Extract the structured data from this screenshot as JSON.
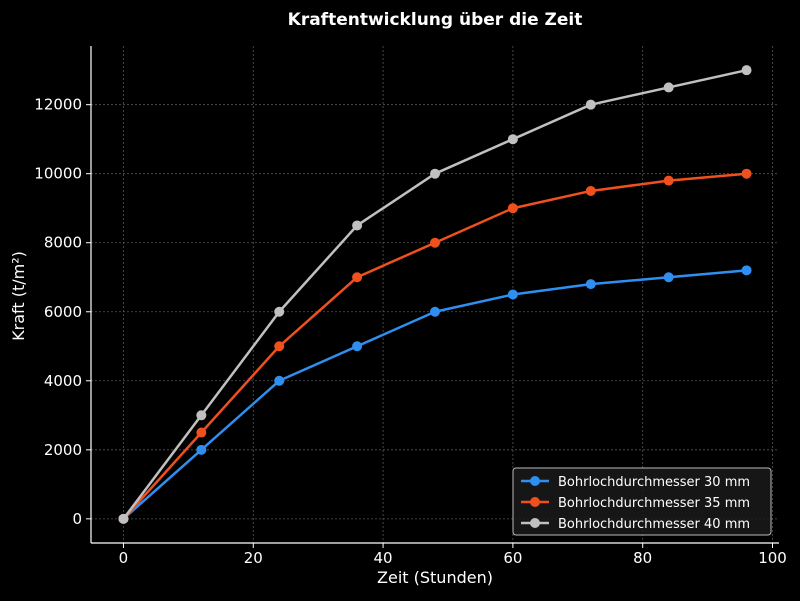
{
  "chart_data": {
    "type": "line",
    "title": "Kraftentwicklung über die Zeit",
    "xlabel": "Zeit (Stunden)",
    "ylabel": "Kraft (t/m²)",
    "xlim": [
      -5,
      101
    ],
    "ylim": [
      -700,
      13700
    ],
    "x_ticks": [
      0,
      20,
      40,
      60,
      80,
      100
    ],
    "y_ticks": [
      0,
      2000,
      4000,
      6000,
      8000,
      10000,
      12000
    ],
    "grid": true,
    "legend_position": "lower-right",
    "x": [
      0,
      12,
      24,
      36,
      48,
      60,
      72,
      84,
      96
    ],
    "series": [
      {
        "name": "Bohrlochdurchmesser 30 mm",
        "color": "#2f8ff0",
        "values": [
          0,
          2000,
          4000,
          5000,
          6000,
          6500,
          6800,
          7000,
          7200
        ]
      },
      {
        "name": "Bohrlochdurchmesser 35 mm",
        "color": "#f0501e",
        "values": [
          0,
          2500,
          5000,
          7000,
          8000,
          9000,
          9500,
          9800,
          10000
        ]
      },
      {
        "name": "Bohrlochdurchmesser 40 mm",
        "color": "#c0c0c0",
        "values": [
          0,
          3000,
          6000,
          8500,
          10000,
          11000,
          12000,
          12500,
          13000
        ]
      }
    ]
  }
}
